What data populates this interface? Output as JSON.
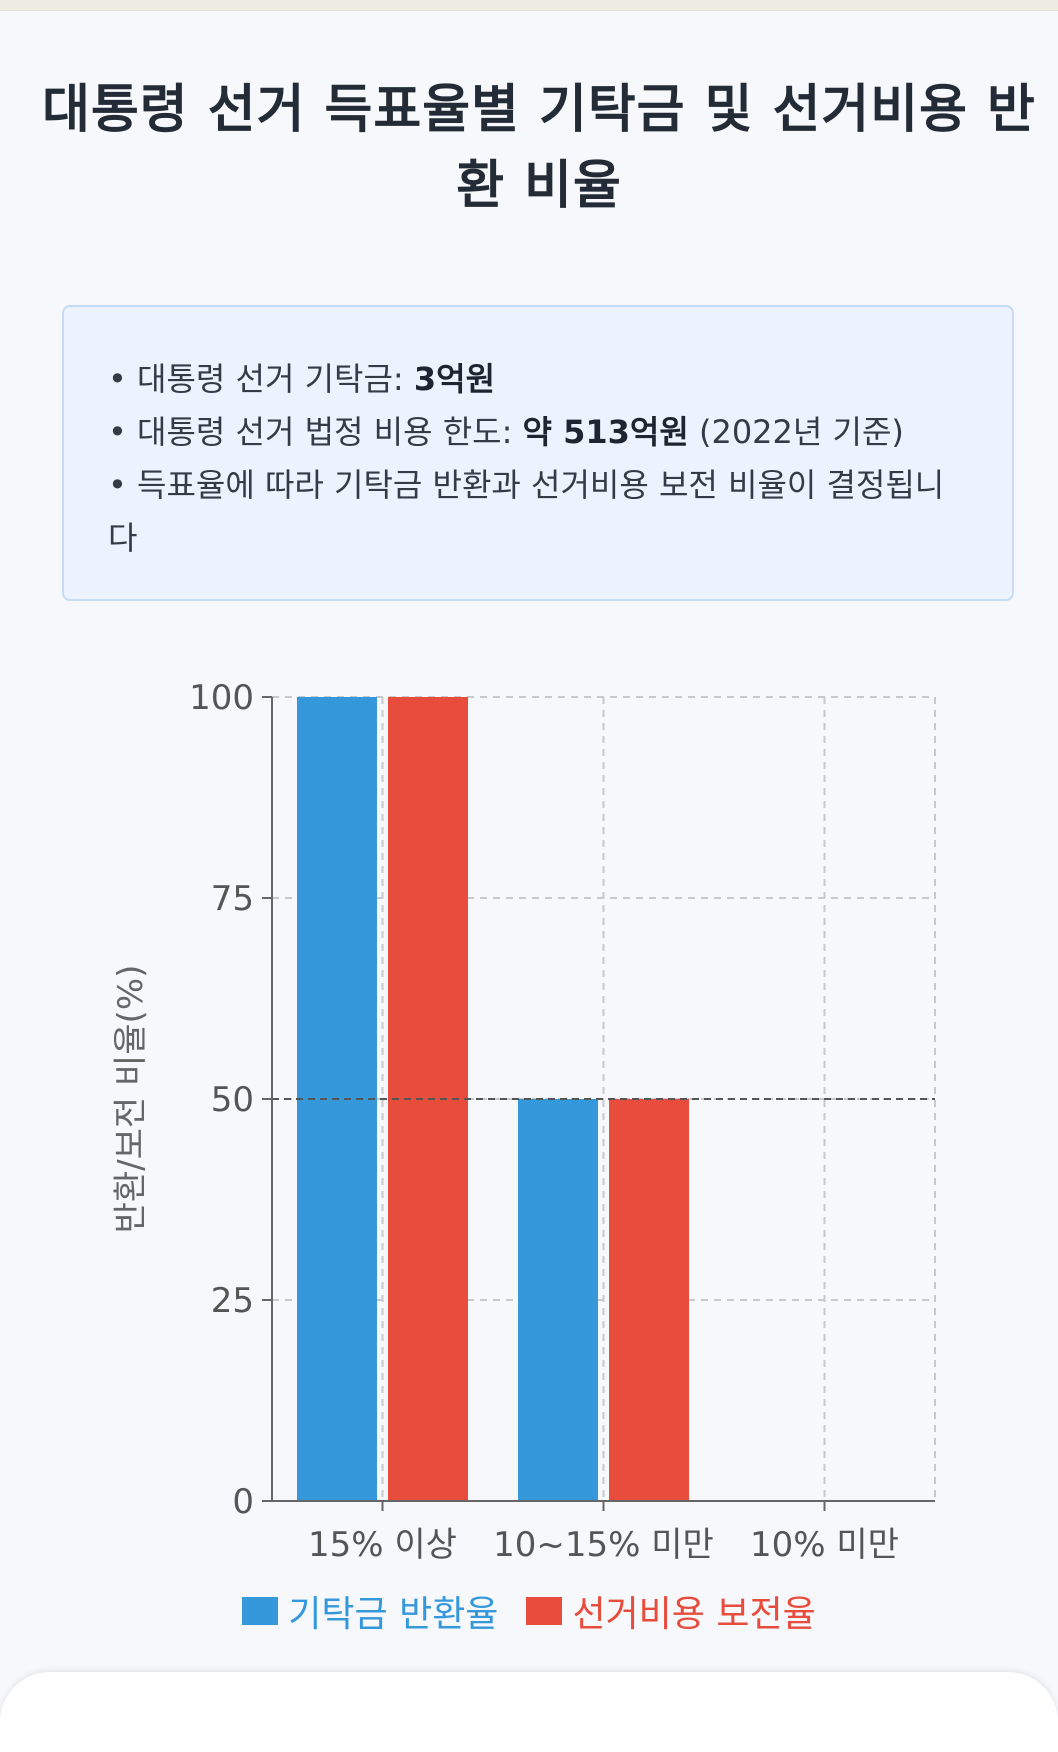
{
  "title": "대통령 선거 득표율별 기탁금 및 선거비용 반환 비율",
  "info": {
    "line1_text": "• 대통령 선거 기탁금: ",
    "line1_bold": "3억원",
    "line2_text": "• 대통령 선거 법정 비용 한도: ",
    "line2_bold": "약 513억원",
    "line2_tail": " (2022년 기준)",
    "line3_text": "• 득표율에 따라 기탁금 반환과 선거비용 보전 비율이 결정됩니다"
  },
  "colors": {
    "series1": "#3498db",
    "series2": "#e74c3c",
    "grid": "#c9c9c9",
    "axis": "#666666",
    "threshold": "#555555"
  },
  "chart_data": {
    "type": "bar",
    "categories": [
      "15% 이상",
      "10~15% 미만",
      "10% 미만"
    ],
    "series": [
      {
        "name": "기탁금 반환율",
        "values": [
          100,
          50,
          0
        ]
      },
      {
        "name": "선거비용 보전율",
        "values": [
          100,
          50,
          0
        ]
      }
    ],
    "ylabel": "반환/보전 비율(%)",
    "ylim": [
      0,
      100
    ],
    "yticks": [
      0,
      25,
      50,
      75,
      100
    ],
    "grid": true,
    "reference_line": 50,
    "legend": "bottom-center"
  }
}
